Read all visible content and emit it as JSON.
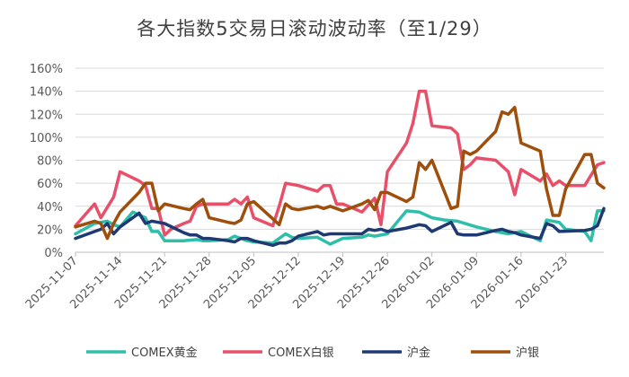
{
  "chart_data": {
    "type": "line",
    "title": "各大指数5交易日滚动波动率（至1/29）",
    "xlabel": "",
    "ylabel": "",
    "ylim": [
      0,
      160
    ],
    "y_ticks": [
      "0%",
      "20%",
      "40%",
      "60%",
      "80%",
      "100%",
      "120%",
      "140%",
      "160%"
    ],
    "x_ticks": [
      "2025-11-07",
      "2025-11-14",
      "2025-11-21",
      "2025-11-28",
      "2025-12-05",
      "2025-12-12",
      "2025-12-19",
      "2025-12-26",
      "2026-01-02",
      "2026-01-09",
      "2026-01-16",
      "2026-01-23"
    ],
    "x_start": "2025-11-07",
    "x_end": "2026-01-29",
    "gridlines": true,
    "legend_position": "bottom",
    "series": [
      {
        "name": "COMEX黄金",
        "color": "#2dbfa9",
        "points": [
          [
            "2025-11-07",
            16
          ],
          [
            "2025-11-10",
            25
          ],
          [
            "2025-11-12",
            27
          ],
          [
            "2025-11-13",
            24
          ],
          [
            "2025-11-14",
            22
          ],
          [
            "2025-11-16",
            35
          ],
          [
            "2025-11-18",
            30
          ],
          [
            "2025-11-19",
            18
          ],
          [
            "2025-11-20",
            18
          ],
          [
            "2025-11-21",
            10
          ],
          [
            "2025-11-24",
            10
          ],
          [
            "2025-11-26",
            11
          ],
          [
            "2025-11-27",
            10
          ],
          [
            "2025-11-28",
            10
          ],
          [
            "2025-12-01",
            11
          ],
          [
            "2025-12-02",
            14
          ],
          [
            "2025-12-03",
            12
          ],
          [
            "2025-12-04",
            10
          ],
          [
            "2025-12-05",
            9
          ],
          [
            "2025-12-08",
            8
          ],
          [
            "2025-12-10",
            16
          ],
          [
            "2025-12-11",
            13
          ],
          [
            "2025-12-12",
            12
          ],
          [
            "2025-12-15",
            13
          ],
          [
            "2025-12-17",
            7
          ],
          [
            "2025-12-19",
            12
          ],
          [
            "2025-12-22",
            13
          ],
          [
            "2025-12-23",
            15
          ],
          [
            "2025-12-24",
            14
          ],
          [
            "2025-12-26",
            16
          ],
          [
            "2025-12-29",
            36
          ],
          [
            "2025-12-31",
            35
          ],
          [
            "2026-01-02",
            30
          ],
          [
            "2026-01-04",
            28
          ],
          [
            "2026-01-06",
            27
          ],
          [
            "2026-01-09",
            22
          ],
          [
            "2026-01-12",
            18
          ],
          [
            "2026-01-14",
            16
          ],
          [
            "2026-01-16",
            18
          ],
          [
            "2026-01-19",
            10
          ],
          [
            "2026-01-20",
            28
          ],
          [
            "2026-01-22",
            26
          ],
          [
            "2026-01-23",
            20
          ],
          [
            "2026-01-26",
            18
          ],
          [
            "2026-01-27",
            10
          ],
          [
            "2026-01-28",
            36
          ],
          [
            "2026-01-29",
            36
          ]
        ]
      },
      {
        "name": "COMEX白银",
        "color": "#e8506a",
        "points": [
          [
            "2025-11-07",
            23
          ],
          [
            "2025-11-10",
            42
          ],
          [
            "2025-11-11",
            30
          ],
          [
            "2025-11-13",
            48
          ],
          [
            "2025-11-14",
            70
          ],
          [
            "2025-11-17",
            62
          ],
          [
            "2025-11-18",
            58
          ],
          [
            "2025-11-19",
            38
          ],
          [
            "2025-11-20",
            38
          ],
          [
            "2025-11-21",
            15
          ],
          [
            "2025-11-22",
            20
          ],
          [
            "2025-11-24",
            25
          ],
          [
            "2025-11-25",
            27
          ],
          [
            "2025-11-26",
            40
          ],
          [
            "2025-11-27",
            42
          ],
          [
            "2025-11-28",
            42
          ],
          [
            "2025-12-01",
            42
          ],
          [
            "2025-12-02",
            46
          ],
          [
            "2025-12-03",
            42
          ],
          [
            "2025-12-04",
            48
          ],
          [
            "2025-12-05",
            30
          ],
          [
            "2025-12-08",
            23
          ],
          [
            "2025-12-09",
            40
          ],
          [
            "2025-12-10",
            60
          ],
          [
            "2025-12-12",
            58
          ],
          [
            "2025-12-15",
            53
          ],
          [
            "2025-12-16",
            58
          ],
          [
            "2025-12-17",
            58
          ],
          [
            "2025-12-18",
            42
          ],
          [
            "2025-12-19",
            42
          ],
          [
            "2025-12-22",
            35
          ],
          [
            "2025-12-24",
            47
          ],
          [
            "2025-12-25",
            24
          ],
          [
            "2025-12-26",
            70
          ],
          [
            "2025-12-29",
            95
          ],
          [
            "2025-12-30",
            112
          ],
          [
            "2025-12-31",
            140
          ],
          [
            "2026-01-01",
            140
          ],
          [
            "2026-01-02",
            110
          ],
          [
            "2026-01-05",
            108
          ],
          [
            "2026-01-06",
            103
          ],
          [
            "2026-01-07",
            72
          ],
          [
            "2026-01-08",
            76
          ],
          [
            "2026-01-09",
            82
          ],
          [
            "2026-01-12",
            80
          ],
          [
            "2026-01-14",
            70
          ],
          [
            "2026-01-15",
            50
          ],
          [
            "2026-01-16",
            72
          ],
          [
            "2026-01-19",
            62
          ],
          [
            "2026-01-20",
            68
          ],
          [
            "2026-01-21",
            58
          ],
          [
            "2026-01-22",
            62
          ],
          [
            "2026-01-23",
            58
          ],
          [
            "2026-01-26",
            58
          ],
          [
            "2026-01-28",
            76
          ],
          [
            "2026-01-29",
            78
          ]
        ]
      },
      {
        "name": "沪金",
        "color": "#1f3a73",
        "points": [
          [
            "2025-11-07",
            12
          ],
          [
            "2025-11-10",
            18
          ],
          [
            "2025-11-11",
            20
          ],
          [
            "2025-11-12",
            25
          ],
          [
            "2025-11-13",
            16
          ],
          [
            "2025-11-14",
            22
          ],
          [
            "2025-11-17",
            34
          ],
          [
            "2025-11-18",
            25
          ],
          [
            "2025-11-19",
            27
          ],
          [
            "2025-11-20",
            26
          ],
          [
            "2025-11-21",
            25
          ],
          [
            "2025-11-24",
            17
          ],
          [
            "2025-11-25",
            15
          ],
          [
            "2025-11-26",
            15
          ],
          [
            "2025-11-27",
            12
          ],
          [
            "2025-11-28",
            12
          ],
          [
            "2025-12-01",
            10
          ],
          [
            "2025-12-02",
            9
          ],
          [
            "2025-12-03",
            12
          ],
          [
            "2025-12-04",
            12
          ],
          [
            "2025-12-05",
            10
          ],
          [
            "2025-12-08",
            6
          ],
          [
            "2025-12-09",
            8
          ],
          [
            "2025-12-10",
            8
          ],
          [
            "2025-12-11",
            10
          ],
          [
            "2025-12-12",
            14
          ],
          [
            "2025-12-15",
            18
          ],
          [
            "2025-12-16",
            15
          ],
          [
            "2025-12-17",
            16
          ],
          [
            "2025-12-18",
            16
          ],
          [
            "2025-12-19",
            16
          ],
          [
            "2025-12-22",
            16
          ],
          [
            "2025-12-23",
            20
          ],
          [
            "2025-12-24",
            19
          ],
          [
            "2025-12-25",
            20
          ],
          [
            "2025-12-26",
            18
          ],
          [
            "2025-12-29",
            21
          ],
          [
            "2025-12-31",
            24
          ],
          [
            "2026-01-01",
            23
          ],
          [
            "2026-01-02",
            18
          ],
          [
            "2026-01-05",
            26
          ],
          [
            "2026-01-06",
            16
          ],
          [
            "2026-01-07",
            15
          ],
          [
            "2026-01-08",
            15
          ],
          [
            "2026-01-09",
            15
          ],
          [
            "2026-01-12",
            19
          ],
          [
            "2026-01-13",
            20
          ],
          [
            "2026-01-14",
            18
          ],
          [
            "2026-01-15",
            17
          ],
          [
            "2026-01-16",
            15
          ],
          [
            "2026-01-19",
            12
          ],
          [
            "2026-01-20",
            25
          ],
          [
            "2026-01-21",
            23
          ],
          [
            "2026-01-22",
            18
          ],
          [
            "2026-01-26",
            19
          ],
          [
            "2026-01-27",
            20
          ],
          [
            "2026-01-28",
            23
          ],
          [
            "2026-01-29",
            38
          ]
        ]
      },
      {
        "name": "沪银",
        "color": "#9e4f0c",
        "points": [
          [
            "2025-11-07",
            22
          ],
          [
            "2025-11-10",
            27
          ],
          [
            "2025-11-11",
            25
          ],
          [
            "2025-11-12",
            12
          ],
          [
            "2025-11-13",
            25
          ],
          [
            "2025-11-14",
            35
          ],
          [
            "2025-11-17",
            52
          ],
          [
            "2025-11-18",
            60
          ],
          [
            "2025-11-19",
            60
          ],
          [
            "2025-11-20",
            36
          ],
          [
            "2025-11-21",
            42
          ],
          [
            "2025-11-24",
            38
          ],
          [
            "2025-11-25",
            37
          ],
          [
            "2025-11-26",
            42
          ],
          [
            "2025-11-27",
            46
          ],
          [
            "2025-11-28",
            30
          ],
          [
            "2025-12-01",
            26
          ],
          [
            "2025-12-02",
            25
          ],
          [
            "2025-12-03",
            28
          ],
          [
            "2025-12-04",
            42
          ],
          [
            "2025-12-05",
            44
          ],
          [
            "2025-12-08",
            29
          ],
          [
            "2025-12-09",
            24
          ],
          [
            "2025-12-10",
            42
          ],
          [
            "2025-12-11",
            38
          ],
          [
            "2025-12-12",
            37
          ],
          [
            "2025-12-15",
            40
          ],
          [
            "2025-12-16",
            38
          ],
          [
            "2025-12-17",
            40
          ],
          [
            "2025-12-18",
            38
          ],
          [
            "2025-12-19",
            36
          ],
          [
            "2025-12-22",
            42
          ],
          [
            "2025-12-23",
            45
          ],
          [
            "2025-12-24",
            37
          ],
          [
            "2025-12-25",
            52
          ],
          [
            "2025-12-26",
            52
          ],
          [
            "2025-12-29",
            44
          ],
          [
            "2025-12-30",
            48
          ],
          [
            "2025-12-31",
            78
          ],
          [
            "2026-01-01",
            72
          ],
          [
            "2026-01-02",
            80
          ],
          [
            "2026-01-05",
            38
          ],
          [
            "2026-01-06",
            40
          ],
          [
            "2026-01-07",
            88
          ],
          [
            "2026-01-08",
            85
          ],
          [
            "2026-01-09",
            88
          ],
          [
            "2026-01-12",
            105
          ],
          [
            "2026-01-13",
            122
          ],
          [
            "2026-01-14",
            120
          ],
          [
            "2026-01-15",
            126
          ],
          [
            "2026-01-16",
            95
          ],
          [
            "2026-01-19",
            88
          ],
          [
            "2026-01-20",
            55
          ],
          [
            "2026-01-21",
            32
          ],
          [
            "2026-01-22",
            32
          ],
          [
            "2026-01-23",
            55
          ],
          [
            "2026-01-26",
            85
          ],
          [
            "2026-01-27",
            85
          ],
          [
            "2026-01-28",
            60
          ],
          [
            "2026-01-29",
            56
          ]
        ]
      }
    ]
  }
}
